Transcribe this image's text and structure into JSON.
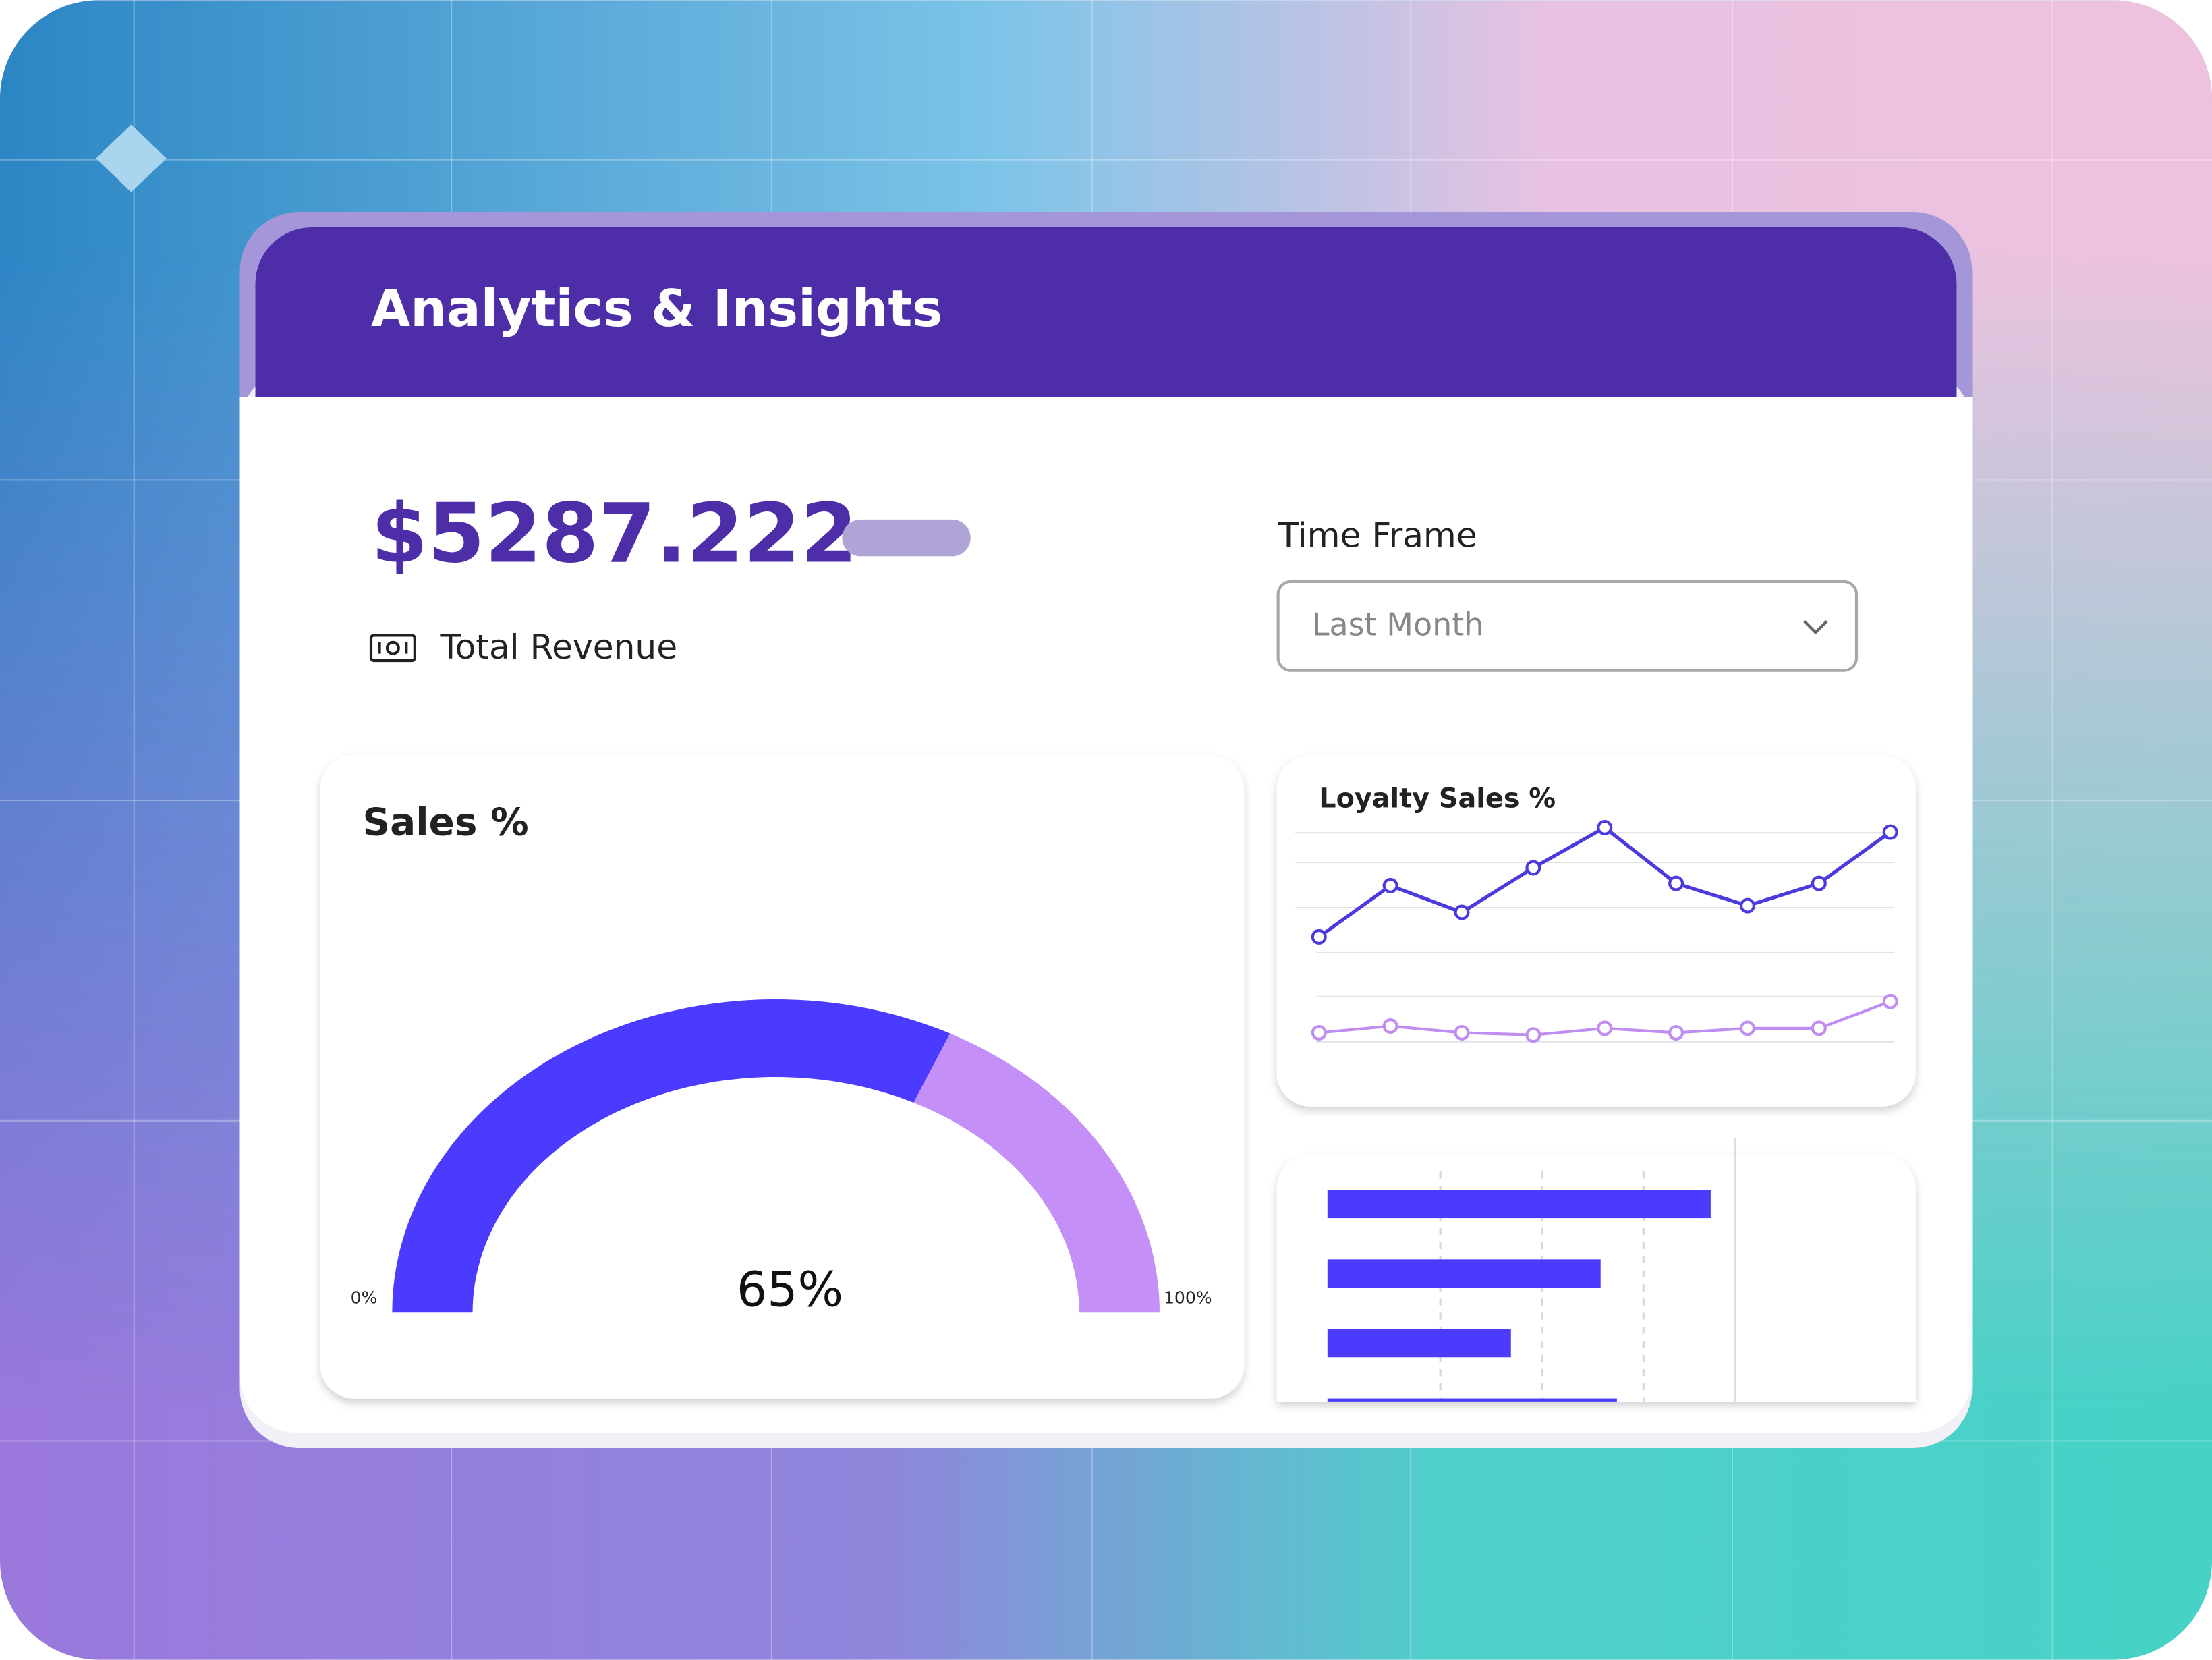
{
  "header": {
    "title": "Analytics & Insights"
  },
  "revenue": {
    "amount": "$5287.222",
    "label": "Total Revenue"
  },
  "time_frame": {
    "label": "Time Frame",
    "selected": "Last Month"
  },
  "chart_data": [
    {
      "type": "gauge",
      "title": "Sales %",
      "value": 65,
      "value_label": "65%",
      "colors": [
        "#4b3bff",
        "#c490f8"
      ],
      "xlim": [
        0,
        100
      ],
      "xticks": [
        {
          "value": 0,
          "label": "0%"
        },
        {
          "value": 100,
          "label": "100%"
        }
      ]
    },
    {
      "type": "line",
      "title": "Loyalty Sales %",
      "categories": [
        null,
        null,
        null,
        null,
        null,
        null,
        null,
        null,
        null
      ],
      "ylim": [
        0,
        100
      ],
      "series": [
        {
          "color": "#4b3bdf",
          "values": [
            47,
            70,
            58,
            78,
            96,
            71,
            61,
            71,
            94
          ]
        },
        {
          "color": "#c08ef0",
          "values": [
            4,
            7,
            4,
            3,
            6,
            4,
            6,
            6,
            18
          ]
        }
      ]
    },
    {
      "type": "bar",
      "categories": [
        null,
        null,
        null,
        null
      ],
      "values": [
        94,
        67,
        45,
        71
      ],
      "color": "#4b3bff",
      "xlim": [
        0,
        100
      ]
    }
  ]
}
